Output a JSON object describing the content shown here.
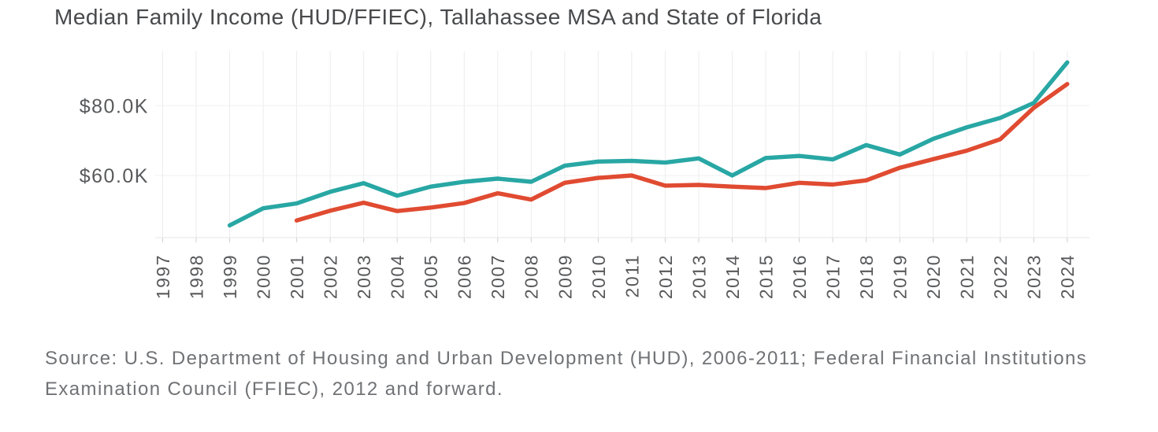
{
  "title": "Median Family Income (HUD/FFIEC), Tallahassee MSA and State of Florida",
  "source_note": {
    "line1": "Source: U.S. Department of Housing and Urban Development (HUD), 2006-2011; Federal Financial Institutions",
    "line2": "Examination Council (FFIEC), 2012 and forward."
  },
  "colors": {
    "tallahassee_line": "#28a7a4",
    "florida_line": "#e04b31",
    "title_text": "#48494b",
    "axis_label_text": "#58595b",
    "source_text": "#707275",
    "vertical_gridline": "#ececec",
    "horizontal_gridline": "#f0f0f0",
    "axis_line": "#e6e6e6",
    "tick_mark": "#cdd0d2",
    "background": "#ffffff"
  },
  "chart_data": {
    "type": "line",
    "title": "Median Family Income (HUD/FFIEC), Tallahassee MSA and State of Florida",
    "xlabel": "",
    "ylabel": "",
    "grid": "vertical line per year; horizontal lines at labeled y ticks",
    "legend": "none",
    "x": [
      1997,
      1998,
      1999,
      2000,
      2001,
      2002,
      2003,
      2004,
      2005,
      2006,
      2007,
      2008,
      2009,
      2010,
      2011,
      2012,
      2013,
      2014,
      2015,
      2016,
      2017,
      2018,
      2019,
      2020,
      2021,
      2022,
      2023,
      2024
    ],
    "y_ticks": [
      {
        "label": "$60.0K",
        "value": 60000
      },
      {
        "label": "$80.0K",
        "value": 80000
      }
    ],
    "ylim": [
      42200,
      95600
    ],
    "series": [
      {
        "name": "Tallahassee MSA",
        "color": "#28a7a4",
        "values": [
          null,
          null,
          45700,
          50600,
          52000,
          55300,
          57800,
          54200,
          56800,
          58200,
          59100,
          58200,
          62800,
          64000,
          64200,
          63700,
          64900,
          60000,
          65000,
          65600,
          64600,
          68700,
          66000,
          70500,
          73800,
          76500,
          80800,
          92400
        ]
      },
      {
        "name": "State of Florida",
        "color": "#e04b31",
        "values": [
          null,
          null,
          null,
          null,
          47100,
          49900,
          52200,
          49800,
          50800,
          52100,
          54900,
          53100,
          57900,
          59300,
          60000,
          57100,
          57300,
          56800,
          56400,
          57900,
          57400,
          58600,
          62200,
          64700,
          67100,
          70400,
          79400,
          86200
        ]
      }
    ]
  }
}
